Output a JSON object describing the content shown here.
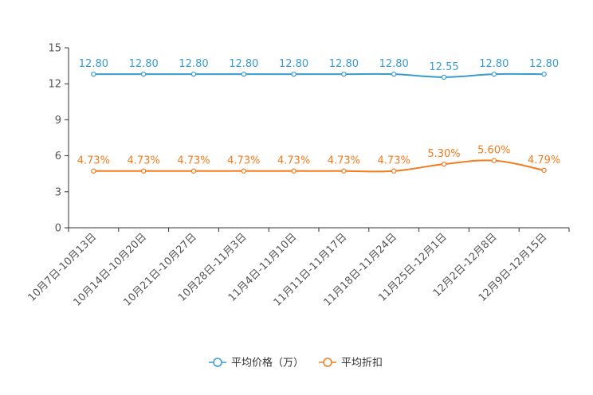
{
  "chart_data": {
    "type": "line",
    "title": "",
    "xlabel": "",
    "ylabel": "",
    "ylim": [
      0,
      15
    ],
    "yticks": [
      0,
      3,
      6,
      9,
      12,
      15
    ],
    "grid": false,
    "legend_position": "bottom-center",
    "categories": [
      "10月7日-10月13日",
      "10月14日-10月20日",
      "10月21日-10月27日",
      "10月28日-11月3日",
      "11月4日-11月10日",
      "11月11日-11月17日",
      "11月18日-11月24日",
      "11月25日-12月1日",
      "12月2日-12月8日",
      "12月9日-12月15日"
    ],
    "series": [
      {
        "name": "平均价格（万）",
        "color": "#3a9bd0",
        "values": [
          12.8,
          12.8,
          12.8,
          12.8,
          12.8,
          12.8,
          12.8,
          12.55,
          12.8,
          12.8
        ],
        "labels": [
          "12.80",
          "12.80",
          "12.80",
          "12.80",
          "12.80",
          "12.80",
          "12.80",
          "12.55",
          "12.80",
          "12.80"
        ]
      },
      {
        "name": "平均折扣",
        "color": "#f57b1f",
        "values": [
          4.73,
          4.73,
          4.73,
          4.73,
          4.73,
          4.73,
          4.73,
          5.3,
          5.6,
          4.79
        ],
        "labels": [
          "4.73%",
          "4.73%",
          "4.73%",
          "4.73%",
          "4.73%",
          "4.73%",
          "4.73%",
          "5.30%",
          "5.60%",
          "4.79%"
        ]
      }
    ]
  }
}
